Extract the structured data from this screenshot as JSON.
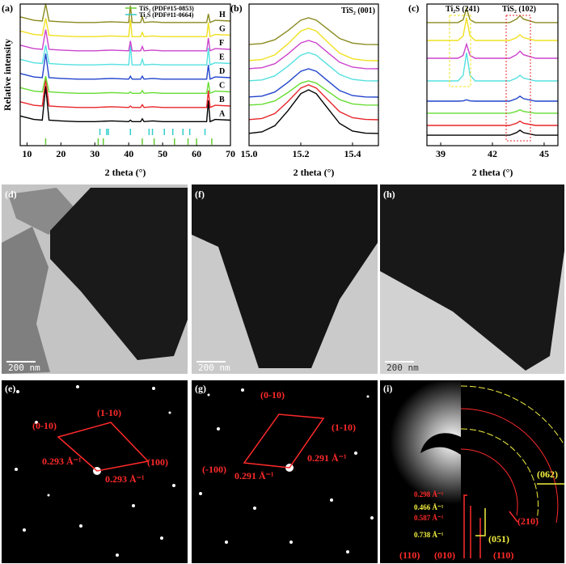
{
  "chart_data": [
    {
      "type": "line",
      "label": "(a)",
      "xlabel": "2 theta (°)",
      "ylabel": "Relative intensity",
      "xlim": [
        8,
        70
      ],
      "ylim": [
        0,
        10
      ],
      "xticks": [
        10,
        20,
        30,
        40,
        50,
        60,
        70
      ],
      "x": [
        8,
        12,
        14.5,
        15.5,
        16.5,
        20,
        25,
        30,
        35,
        40,
        40.5,
        41,
        43.5,
        44,
        44.5,
        47,
        50,
        55,
        60,
        63,
        63.5,
        64,
        65.5,
        70
      ],
      "series": [
        {
          "name": "A",
          "color": "#000000",
          "values": [
            2.1,
            1.85,
            1.8,
            4.2,
            1.8,
            1.75,
            1.7,
            1.7,
            1.75,
            1.7,
            1.8,
            1.7,
            1.7,
            1.9,
            1.7,
            1.75,
            1.7,
            1.7,
            1.7,
            1.7,
            3.2,
            1.7,
            1.85,
            1.8
          ]
        },
        {
          "name": "B",
          "color": "#e8262a",
          "values": [
            3.1,
            2.85,
            2.8,
            4.7,
            2.8,
            2.75,
            2.7,
            2.7,
            2.75,
            2.7,
            2.8,
            2.7,
            2.7,
            2.9,
            2.7,
            2.75,
            2.7,
            2.7,
            2.7,
            2.7,
            3.9,
            2.7,
            2.85,
            2.8
          ]
        },
        {
          "name": "C",
          "color": "#66dd33",
          "values": [
            4.1,
            3.85,
            3.8,
            4.9,
            3.8,
            3.75,
            3.7,
            3.7,
            3.75,
            3.7,
            3.8,
            3.7,
            3.7,
            3.9,
            3.7,
            3.75,
            3.7,
            3.7,
            3.7,
            3.7,
            4.5,
            3.7,
            3.85,
            3.8
          ]
        },
        {
          "name": "D",
          "color": "#2244cc",
          "values": [
            5.1,
            4.85,
            4.8,
            6.5,
            4.8,
            4.75,
            4.7,
            4.7,
            4.75,
            4.7,
            4.9,
            4.7,
            4.7,
            4.9,
            4.7,
            4.75,
            4.7,
            4.7,
            4.7,
            4.7,
            5.7,
            4.7,
            4.85,
            4.8
          ]
        },
        {
          "name": "E",
          "color": "#55e0e0",
          "values": [
            6.1,
            5.85,
            5.8,
            7.1,
            5.8,
            5.75,
            5.7,
            5.7,
            5.75,
            5.7,
            7.1,
            5.7,
            5.7,
            6.1,
            5.7,
            5.75,
            5.7,
            5.7,
            5.7,
            5.7,
            6.9,
            5.7,
            5.85,
            5.8
          ]
        },
        {
          "name": "F",
          "color": "#cc44cc",
          "values": [
            7.1,
            6.85,
            6.8,
            8.2,
            6.8,
            6.75,
            6.7,
            6.7,
            6.75,
            6.7,
            7.4,
            6.7,
            6.7,
            7.0,
            6.7,
            6.75,
            6.7,
            6.7,
            6.7,
            6.7,
            7.6,
            6.7,
            6.85,
            6.8
          ]
        },
        {
          "name": "G",
          "color": "#f0e020",
          "values": [
            8.1,
            7.85,
            7.8,
            9.0,
            7.8,
            7.75,
            7.7,
            7.7,
            7.75,
            7.7,
            8.9,
            7.7,
            7.7,
            8.0,
            7.7,
            7.75,
            7.7,
            7.7,
            7.7,
            7.7,
            8.7,
            7.7,
            7.85,
            7.8
          ]
        },
        {
          "name": "H",
          "color": "#8a8a20",
          "values": [
            9.1,
            8.85,
            8.8,
            10,
            8.8,
            8.75,
            8.7,
            8.7,
            8.75,
            8.7,
            9.9,
            8.7,
            8.7,
            9.1,
            8.7,
            8.75,
            8.7,
            8.7,
            8.7,
            8.7,
            9.3,
            8.7,
            8.85,
            8.8
          ]
        }
      ],
      "references": [
        {
          "name": "TiS₂ (PDF#15-0853)",
          "color": "#66cc33",
          "positions": [
            15.5,
            31,
            32.5,
            44,
            47.5,
            53.5,
            57.5,
            60,
            64.5
          ]
        },
        {
          "name": "Ti₂S (PDF#11-0664)",
          "color": "#33cccc",
          "positions": [
            31.5,
            33.5,
            34,
            40.5,
            46,
            47,
            50.5,
            53,
            56,
            58,
            62.5
          ]
        }
      ]
    },
    {
      "type": "line",
      "label": "(b)",
      "xlabel": "2 theta (°)",
      "annotation": "TiS₂ (001)",
      "xlim": [
        15,
        15.5
      ],
      "ylim": [
        0,
        10
      ],
      "xticks": [
        {
          "value": 15,
          "label": "15.0"
        },
        15.2,
        15.4
      ],
      "x": [
        15.0,
        15.05,
        15.1,
        15.15,
        15.2,
        15.23,
        15.26,
        15.3,
        15.35,
        15.4,
        15.45,
        15.5
      ],
      "series": [
        {
          "color": "#000000",
          "values": [
            0.87,
            0.97,
            1.41,
            2.46,
            3.67,
            3.94,
            3.67,
            2.73,
            1.57,
            1.03,
            0.88,
            0.86
          ]
        },
        {
          "color": "#e8262a",
          "values": [
            1.84,
            1.92,
            2.27,
            3.11,
            4.07,
            4.29,
            4.07,
            3.32,
            2.4,
            1.97,
            1.85,
            1.83
          ]
        },
        {
          "color": "#66dd33",
          "values": [
            2.87,
            2.92,
            3.16,
            3.75,
            4.42,
            4.57,
            4.42,
            3.9,
            3.25,
            2.95,
            2.87,
            2.86
          ]
        },
        {
          "color": "#2244cc",
          "values": [
            3.44,
            3.5,
            3.79,
            4.47,
            5.25,
            5.43,
            5.25,
            4.64,
            3.89,
            3.54,
            3.44,
            3.43
          ]
        },
        {
          "color": "#55e0e0",
          "values": [
            4.58,
            4.64,
            4.93,
            5.61,
            6.39,
            6.57,
            6.39,
            5.78,
            5.03,
            4.68,
            4.58,
            4.57
          ]
        },
        {
          "color": "#cc44cc",
          "values": [
            5.44,
            5.5,
            5.79,
            6.47,
            7.25,
            7.43,
            7.25,
            6.64,
            5.89,
            5.54,
            5.44,
            5.43
          ]
        },
        {
          "color": "#f0e020",
          "values": [
            6.01,
            6.08,
            6.41,
            7.19,
            8.09,
            8.29,
            8.09,
            7.39,
            6.53,
            6.13,
            6.02,
            6.0
          ]
        },
        {
          "color": "#8a8a20",
          "values": [
            7.15,
            7.21,
            7.48,
            8.12,
            8.86,
            9.03,
            8.86,
            8.29,
            7.57,
            7.24,
            7.15,
            7.14
          ]
        }
      ]
    },
    {
      "type": "line",
      "label": "(c)",
      "xlabel": "2 theta (°)",
      "annotations": [
        "Ti₂S (241)",
        "TiS₂ (102)"
      ],
      "xlim": [
        38.2,
        45.8
      ],
      "ylim": [
        0,
        10
      ],
      "xticks": [
        39,
        42,
        45
      ],
      "x": [
        38.2,
        39,
        40,
        40.3,
        40.5,
        40.7,
        41,
        42,
        43,
        43.4,
        43.6,
        43.8,
        44.5,
        45.8
      ],
      "series": [
        {
          "color": "#000000",
          "values": [
            0.74,
            0.74,
            0.74,
            0.74,
            0.74,
            0.74,
            0.74,
            0.74,
            0.74,
            0.92,
            1.09,
            0.92,
            0.74,
            0.74
          ]
        },
        {
          "color": "#e8262a",
          "values": [
            1.43,
            1.43,
            1.43,
            1.43,
            1.43,
            1.43,
            1.43,
            1.43,
            1.43,
            1.58,
            1.73,
            1.58,
            1.43,
            1.43
          ]
        },
        {
          "color": "#66dd33",
          "values": [
            2.29,
            2.29,
            2.29,
            2.29,
            2.29,
            2.29,
            2.29,
            2.29,
            2.29,
            2.42,
            2.54,
            2.42,
            2.29,
            2.29
          ]
        },
        {
          "color": "#2244cc",
          "values": [
            3.14,
            3.14,
            3.14,
            3.16,
            3.24,
            3.16,
            3.14,
            3.14,
            3.14,
            3.32,
            3.49,
            3.32,
            3.14,
            3.14
          ]
        },
        {
          "color": "#55e0e0",
          "values": [
            4.57,
            4.57,
            4.57,
            4.97,
            6.57,
            4.97,
            4.57,
            4.57,
            4.57,
            4.77,
            4.97,
            4.77,
            4.57,
            4.57
          ]
        },
        {
          "color": "#cc44cc",
          "values": [
            6.17,
            6.17,
            6.17,
            6.37,
            7.17,
            6.37,
            6.17,
            6.17,
            6.17,
            6.42,
            6.67,
            6.42,
            6.17,
            6.17
          ]
        },
        {
          "color": "#f0e020",
          "values": [
            7.43,
            7.43,
            7.43,
            7.75,
            9.03,
            7.75,
            7.43,
            7.43,
            7.43,
            7.63,
            7.83,
            7.63,
            7.43,
            7.43
          ]
        },
        {
          "color": "#8a8a20",
          "values": [
            8.69,
            8.69,
            8.69,
            8.89,
            9.69,
            8.89,
            8.69,
            8.69,
            8.69,
            8.94,
            9.19,
            8.94,
            8.69,
            8.69
          ]
        }
      ]
    }
  ],
  "tem": [
    {
      "label": "(d)",
      "scale_bar": "200 nm"
    },
    {
      "label": "(f)",
      "scale_bar": "200 nm"
    },
    {
      "label": "(h)",
      "scale_bar": "200 nm"
    }
  ],
  "diffraction": [
    {
      "label": "(e)",
      "texts": [
        "(1-10)",
        "(0-10)",
        "(100)",
        "0.293 Å⁻¹",
        "0.293 Å⁻¹"
      ]
    },
    {
      "label": "(g)",
      "texts": [
        "(0-10)",
        "(1-10)",
        "(-100)",
        "0.291 Å⁻¹",
        "0.291 Å⁻¹"
      ]
    },
    {
      "label": "(i)",
      "rings": [
        "0.298 Å⁻¹",
        "0.466 Å⁻¹",
        "0.587 Å⁻¹",
        "0.738 Å⁻¹"
      ],
      "indices": [
        "(062)",
        "(210)",
        "(051)",
        "(110)",
        "(010)",
        "(110)"
      ]
    }
  ]
}
